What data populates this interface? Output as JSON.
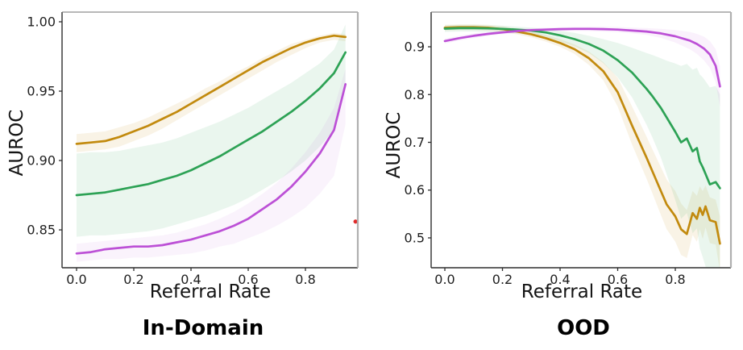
{
  "page": {
    "background": "#ffffff"
  },
  "chart_data": [
    {
      "type": "line",
      "title": "In-Domain",
      "xlabel": "Referral Rate",
      "ylabel": "AUROC",
      "xlim": [
        -0.0507,
        0.983
      ],
      "ylim": [
        0.8227,
        1.00698
      ],
      "grid": false,
      "legend": "none",
      "xticks": {
        "values": [
          0.0,
          0.2,
          0.4,
          0.6,
          0.8
        ],
        "labels": [
          "0.0",
          "0.2",
          "0.4",
          "0.6",
          "0.8"
        ]
      },
      "yticks": {
        "values": [
          0.85,
          0.9,
          0.95,
          1.0
        ],
        "labels": [
          "0.85",
          "0.90",
          "0.95",
          "1.00"
        ]
      },
      "series": [
        {
          "name": "gold-curve",
          "color": "#C28A0E",
          "band_color": "rgba(194,138,14,0.10)",
          "x": [
            0,
            0.05,
            0.1,
            0.15,
            0.2,
            0.25,
            0.3,
            0.35,
            0.4,
            0.45,
            0.5,
            0.55,
            0.6,
            0.65,
            0.7,
            0.75,
            0.8,
            0.85,
            0.9,
            0.94
          ],
          "y": [
            0.912,
            0.913,
            0.914,
            0.917,
            0.921,
            0.925,
            0.93,
            0.935,
            0.941,
            0.947,
            0.953,
            0.959,
            0.965,
            0.971,
            0.976,
            0.981,
            0.985,
            0.988,
            0.99,
            0.989
          ],
          "hi": [
            0.919,
            0.92,
            0.921,
            0.924,
            0.927,
            0.931,
            0.936,
            0.941,
            0.946,
            0.952,
            0.957,
            0.963,
            0.968,
            0.974,
            0.979,
            0.984,
            0.987,
            0.99,
            0.992,
            0.991
          ],
          "lo": [
            0.906,
            0.907,
            0.908,
            0.91,
            0.914,
            0.918,
            0.923,
            0.929,
            0.935,
            0.941,
            0.947,
            0.953,
            0.959,
            0.965,
            0.971,
            0.976,
            0.981,
            0.985,
            0.987,
            0.986
          ]
        },
        {
          "name": "green-curve",
          "color": "#2DA255",
          "band_color": "rgba(45,162,85,0.10)",
          "x": [
            0,
            0.05,
            0.1,
            0.15,
            0.2,
            0.25,
            0.3,
            0.35,
            0.4,
            0.45,
            0.5,
            0.55,
            0.6,
            0.65,
            0.7,
            0.75,
            0.8,
            0.85,
            0.9,
            0.94
          ],
          "y": [
            0.875,
            0.876,
            0.877,
            0.879,
            0.881,
            0.883,
            0.886,
            0.889,
            0.893,
            0.898,
            0.903,
            0.909,
            0.915,
            0.921,
            0.928,
            0.935,
            0.943,
            0.952,
            0.963,
            0.978
          ],
          "hi": [
            0.905,
            0.906,
            0.906,
            0.907,
            0.909,
            0.911,
            0.913,
            0.916,
            0.92,
            0.924,
            0.928,
            0.933,
            0.938,
            0.944,
            0.95,
            0.956,
            0.963,
            0.97,
            0.98,
            0.998
          ],
          "lo": [
            0.845,
            0.846,
            0.846,
            0.847,
            0.848,
            0.849,
            0.851,
            0.854,
            0.857,
            0.86,
            0.864,
            0.868,
            0.873,
            0.879,
            0.885,
            0.892,
            0.9,
            0.91,
            0.922,
            0.956
          ]
        },
        {
          "name": "magenta-curve",
          "color": "#BC50D6",
          "band_color": "rgba(188,80,214,0.07)",
          "x": [
            0,
            0.05,
            0.1,
            0.15,
            0.2,
            0.25,
            0.3,
            0.35,
            0.4,
            0.45,
            0.5,
            0.55,
            0.6,
            0.65,
            0.7,
            0.75,
            0.8,
            0.85,
            0.9,
            0.94
          ],
          "y": [
            0.833,
            0.834,
            0.836,
            0.837,
            0.838,
            0.838,
            0.839,
            0.841,
            0.843,
            0.846,
            0.849,
            0.853,
            0.858,
            0.865,
            0.872,
            0.881,
            0.892,
            0.905,
            0.922,
            0.955
          ],
          "hi": [
            0.84,
            0.841,
            0.842,
            0.843,
            0.844,
            0.845,
            0.846,
            0.848,
            0.851,
            0.854,
            0.858,
            0.863,
            0.869,
            0.876,
            0.884,
            0.894,
            0.906,
            0.92,
            0.938,
            0.966
          ],
          "lo": [
            0.827,
            0.828,
            0.829,
            0.829,
            0.83,
            0.83,
            0.831,
            0.832,
            0.833,
            0.835,
            0.838,
            0.84,
            0.844,
            0.848,
            0.853,
            0.859,
            0.866,
            0.876,
            0.889,
            0.926
          ]
        }
      ],
      "annotations": [
        {
          "type": "point",
          "name": "stray-red-dot",
          "x": 0.975,
          "y": 0.856,
          "color": "#E02B2B",
          "radius": 2.6
        }
      ]
    },
    {
      "type": "line",
      "title": "OOD",
      "xlabel": "Referral Rate",
      "ylabel": "AUROC",
      "xlim": [
        -0.0476,
        0.993
      ],
      "ylim": [
        0.4375,
        0.9726
      ],
      "grid": false,
      "legend": "none",
      "xticks": {
        "values": [
          0.0,
          0.2,
          0.4,
          0.6,
          0.8
        ],
        "labels": [
          "0.0",
          "0.2",
          "0.4",
          "0.6",
          "0.8"
        ]
      },
      "yticks": {
        "values": [
          0.5,
          0.6,
          0.7,
          0.8,
          0.9
        ],
        "labels": [
          "0.5",
          "0.6",
          "0.7",
          "0.8",
          "0.9"
        ]
      },
      "series": [
        {
          "name": "gold-curve",
          "color": "#C28A0E",
          "band_color": "rgba(194,138,14,0.10)",
          "x": [
            0,
            0.05,
            0.1,
            0.15,
            0.2,
            0.25,
            0.3,
            0.35,
            0.4,
            0.45,
            0.5,
            0.55,
            0.6,
            0.65,
            0.7,
            0.72,
            0.75,
            0.77,
            0.8,
            0.82,
            0.84,
            0.86,
            0.875,
            0.885,
            0.895,
            0.905,
            0.92,
            0.94,
            0.955
          ],
          "y": [
            0.94,
            0.941,
            0.941,
            0.94,
            0.937,
            0.932,
            0.926,
            0.918,
            0.908,
            0.895,
            0.876,
            0.849,
            0.805,
            0.735,
            0.668,
            0.64,
            0.598,
            0.57,
            0.545,
            0.518,
            0.508,
            0.552,
            0.54,
            0.563,
            0.548,
            0.566,
            0.537,
            0.533,
            0.488
          ],
          "hi": [
            0.946,
            0.947,
            0.947,
            0.946,
            0.943,
            0.938,
            0.932,
            0.925,
            0.916,
            0.905,
            0.89,
            0.868,
            0.835,
            0.775,
            0.712,
            0.686,
            0.648,
            0.622,
            0.598,
            0.572,
            0.558,
            0.598,
            0.588,
            0.608,
            0.598,
            0.61,
            0.585,
            0.58,
            0.545
          ],
          "lo": [
            0.934,
            0.935,
            0.935,
            0.934,
            0.931,
            0.926,
            0.92,
            0.911,
            0.9,
            0.885,
            0.862,
            0.83,
            0.775,
            0.695,
            0.624,
            0.594,
            0.548,
            0.518,
            0.492,
            0.464,
            0.458,
            0.506,
            0.492,
            0.518,
            0.498,
            0.522,
            0.489,
            0.486,
            0.431
          ]
        },
        {
          "name": "green-curve",
          "color": "#2DA255",
          "band_color": "rgba(45,162,85,0.10)",
          "x": [
            0,
            0.05,
            0.1,
            0.15,
            0.2,
            0.25,
            0.3,
            0.35,
            0.4,
            0.45,
            0.5,
            0.55,
            0.6,
            0.65,
            0.7,
            0.72,
            0.75,
            0.77,
            0.8,
            0.82,
            0.84,
            0.86,
            0.875,
            0.885,
            0.895,
            0.905,
            0.92,
            0.94,
            0.955
          ],
          "y": [
            0.938,
            0.939,
            0.939,
            0.9385,
            0.9375,
            0.936,
            0.934,
            0.93,
            0.924,
            0.916,
            0.906,
            0.892,
            0.872,
            0.846,
            0.812,
            0.797,
            0.772,
            0.752,
            0.722,
            0.7,
            0.708,
            0.681,
            0.688,
            0.66,
            0.648,
            0.634,
            0.612,
            0.617,
            0.604
          ],
          "hi": [
            0.945,
            0.946,
            0.946,
            0.945,
            0.944,
            0.942,
            0.94,
            0.937,
            0.933,
            0.929,
            0.923,
            0.916,
            0.908,
            0.898,
            0.887,
            0.883,
            0.876,
            0.871,
            0.865,
            0.86,
            0.864,
            0.852,
            0.856,
            0.842,
            0.836,
            0.828,
            0.815,
            0.818,
            0.8
          ],
          "lo": [
            0.931,
            0.932,
            0.932,
            0.931,
            0.93,
            0.928,
            0.924,
            0.919,
            0.911,
            0.901,
            0.887,
            0.866,
            0.836,
            0.794,
            0.737,
            0.711,
            0.668,
            0.633,
            0.579,
            0.54,
            0.552,
            0.51,
            0.52,
            0.478,
            0.46,
            0.44,
            0.409,
            0.416,
            0.408
          ]
        },
        {
          "name": "magenta-curve",
          "color": "#BC50D6",
          "band_color": "rgba(188,80,214,0.08)",
          "x": [
            0,
            0.05,
            0.1,
            0.15,
            0.2,
            0.25,
            0.3,
            0.35,
            0.4,
            0.45,
            0.5,
            0.55,
            0.6,
            0.65,
            0.7,
            0.75,
            0.8,
            0.85,
            0.875,
            0.9,
            0.92,
            0.94,
            0.955
          ],
          "y": [
            0.912,
            0.918,
            0.923,
            0.927,
            0.93,
            0.933,
            0.935,
            0.936,
            0.937,
            0.9375,
            0.9375,
            0.937,
            0.936,
            0.934,
            0.932,
            0.928,
            0.922,
            0.913,
            0.906,
            0.896,
            0.884,
            0.86,
            0.817
          ],
          "hi": [
            0.917,
            0.923,
            0.928,
            0.931,
            0.934,
            0.937,
            0.939,
            0.94,
            0.941,
            0.9415,
            0.942,
            0.942,
            0.9415,
            0.94,
            0.939,
            0.9375,
            0.935,
            0.931,
            0.927,
            0.921,
            0.912,
            0.895,
            0.86
          ],
          "lo": [
            0.907,
            0.913,
            0.918,
            0.923,
            0.926,
            0.929,
            0.931,
            0.932,
            0.933,
            0.9335,
            0.933,
            0.932,
            0.9305,
            0.928,
            0.925,
            0.9185,
            0.909,
            0.895,
            0.885,
            0.871,
            0.856,
            0.825,
            0.774
          ]
        }
      ],
      "annotations": []
    }
  ]
}
